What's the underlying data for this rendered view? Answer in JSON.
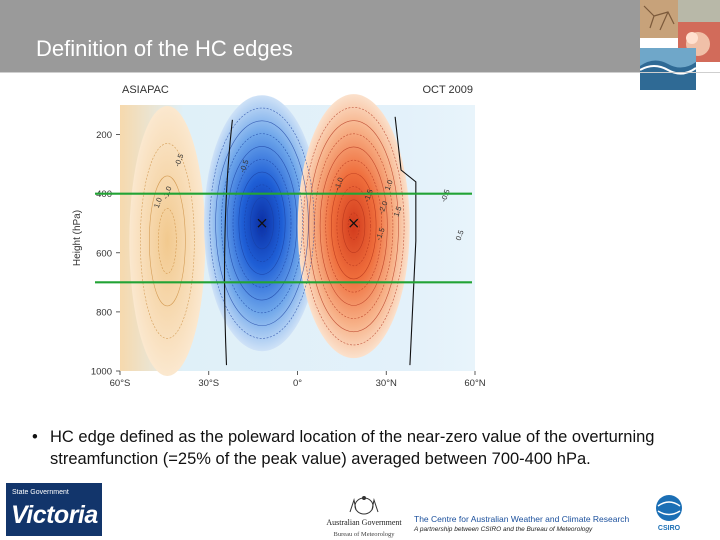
{
  "slide": {
    "title": "Definition of the HC edges",
    "bullet": "HC edge defined as the poleward location of the near-zero value of the overturning streamfunction (=25% of the peak value) averaged between 700-400 hPa."
  },
  "chart_data": {
    "type": "heatmap",
    "left_title": "ASIAPAC",
    "right_title": "OCT 2009",
    "ylabel": "Height (hPa)",
    "y_ticks": [
      "200",
      "400",
      "600",
      "800",
      "1000"
    ],
    "x_ticks": [
      "60°S",
      "30°S",
      "0°",
      "30°N",
      "60°N"
    ],
    "xlim": [
      -60,
      60
    ],
    "ylim": [
      1000,
      100
    ],
    "contour_labels": [
      "-0.5",
      "1.0",
      "-1.0",
      "-0.5",
      "-1.0",
      "-1.5",
      "-1.5",
      "-2.0",
      "1.5",
      "1.0",
      "-0.5",
      "0.5"
    ],
    "reference_levels_hPa": [
      400,
      700
    ],
    "peak_markers": [
      {
        "lat": -12,
        "p": 500,
        "sign": "negative"
      },
      {
        "lat": 19,
        "p": 500,
        "sign": "positive"
      }
    ],
    "colors": {
      "negative": "#1f5fd6",
      "positive": "#e8552a",
      "edge_lines": "#22a335"
    }
  },
  "footer": {
    "vic_small": "State Government",
    "vic_big": "Victoria",
    "aus_gov": "Australian Government",
    "bom": "Bureau of Meteorology",
    "cawcr": "The Centre for Australian Weather and Climate Research",
    "partnership": "A partnership between CSIRO and the Bureau of Meteorology",
    "csiro": "CSIRO"
  }
}
